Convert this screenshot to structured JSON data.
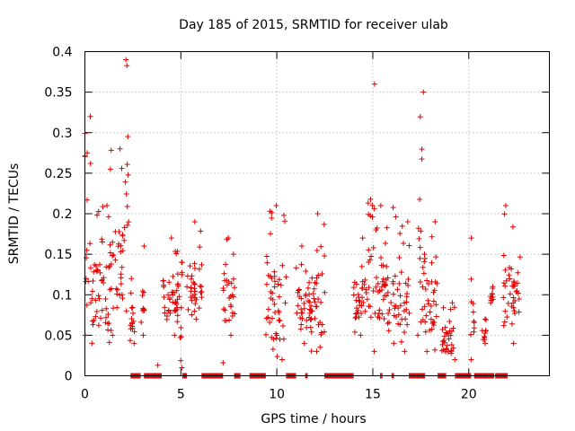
{
  "chart_data": {
    "type": "scatter",
    "title": "Day 185 of 2015, SRMTID for receiver ulab",
    "xlabel": "GPS time / hours",
    "ylabel": "SRMTID / TECUs",
    "xlim": [
      0,
      24.2
    ],
    "ylim": [
      0,
      0.4
    ],
    "grid": true,
    "xticks": [
      0,
      5,
      10,
      15,
      20
    ],
    "xtick_labels": [
      "0",
      "5",
      "10",
      "15",
      "20"
    ],
    "yticks": [
      0,
      0.05,
      0.1,
      0.15,
      0.2,
      0.25,
      0.3,
      0.35,
      0.4
    ],
    "ytick_labels": [
      "0",
      "0.05",
      "0.1",
      "0.15",
      "0.2",
      "0.25",
      "0.3",
      "0.35",
      "0.4"
    ],
    "marker": "+",
    "marker_color": "#e00000",
    "series": [
      {
        "name": "SRMTID",
        "clusters": [
          {
            "x0": 0.0,
            "x1": 0.3,
            "ylo": 0.05,
            "yhi": 0.32
          },
          {
            "x0": 0.3,
            "x1": 1.3,
            "ylo": 0.04,
            "yhi": 0.21
          },
          {
            "x0": 1.3,
            "x1": 2.1,
            "ylo": 0.05,
            "yhi": 0.28
          },
          {
            "x0": 2.1,
            "x1": 2.3,
            "ylo": 0.08,
            "yhi": 0.39
          },
          {
            "x0": 2.3,
            "x1": 2.6,
            "ylo": 0.04,
            "yhi": 0.12
          },
          {
            "x0": 2.9,
            "x1": 3.1,
            "ylo": 0.05,
            "yhi": 0.16
          },
          {
            "x0": 4.0,
            "x1": 4.9,
            "ylo": 0.05,
            "yhi": 0.17
          },
          {
            "x0": 4.9,
            "x1": 5.1,
            "ylo": 0.01,
            "yhi": 0.14
          },
          {
            "x0": 5.3,
            "x1": 6.1,
            "ylo": 0.07,
            "yhi": 0.19
          },
          {
            "x0": 7.2,
            "x1": 7.8,
            "ylo": 0.05,
            "yhi": 0.17
          },
          {
            "x0": 9.4,
            "x1": 10.5,
            "ylo": 0.02,
            "yhi": 0.21
          },
          {
            "x0": 11.0,
            "x1": 11.8,
            "ylo": 0.04,
            "yhi": 0.16
          },
          {
            "x0": 11.8,
            "x1": 12.5,
            "ylo": 0.03,
            "yhi": 0.2
          },
          {
            "x0": 14.0,
            "x1": 14.7,
            "ylo": 0.05,
            "yhi": 0.17
          },
          {
            "x0": 14.7,
            "x1": 15.1,
            "ylo": 0.03,
            "yhi": 0.36
          },
          {
            "x0": 15.1,
            "x1": 16.2,
            "ylo": 0.04,
            "yhi": 0.21
          },
          {
            "x0": 16.2,
            "x1": 16.9,
            "ylo": 0.03,
            "yhi": 0.19
          },
          {
            "x0": 17.3,
            "x1": 17.7,
            "ylo": 0.05,
            "yhi": 0.35
          },
          {
            "x0": 17.7,
            "x1": 18.4,
            "ylo": 0.03,
            "yhi": 0.19
          },
          {
            "x0": 18.6,
            "x1": 19.3,
            "ylo": 0.02,
            "yhi": 0.09
          },
          {
            "x0": 20.1,
            "x1": 20.3,
            "ylo": 0.02,
            "yhi": 0.17
          },
          {
            "x0": 20.7,
            "x1": 20.9,
            "ylo": 0.04,
            "yhi": 0.07
          },
          {
            "x0": 21.1,
            "x1": 21.3,
            "ylo": 0.09,
            "yhi": 0.11
          },
          {
            "x0": 21.8,
            "x1": 22.7,
            "ylo": 0.04,
            "yhi": 0.21
          }
        ],
        "zero_segments": [
          [
            2.4,
            2.9
          ],
          [
            3.1,
            4.0
          ],
          [
            5.1,
            5.3
          ],
          [
            6.1,
            7.2
          ],
          [
            7.8,
            8.1
          ],
          [
            8.6,
            9.4
          ],
          [
            10.5,
            11.0
          ],
          [
            11.5,
            11.6
          ],
          [
            12.5,
            14.0
          ],
          [
            15.4,
            15.5
          ],
          [
            16.0,
            16.1
          ],
          [
            16.9,
            17.7
          ],
          [
            18.4,
            18.8
          ],
          [
            19.3,
            20.1
          ],
          [
            20.3,
            21.3
          ],
          [
            21.4,
            22.0
          ]
        ],
        "isolated_points": [
          {
            "x": 3.8,
            "y": 0.013
          },
          {
            "x": 7.2,
            "y": 0.016
          }
        ]
      }
    ]
  }
}
